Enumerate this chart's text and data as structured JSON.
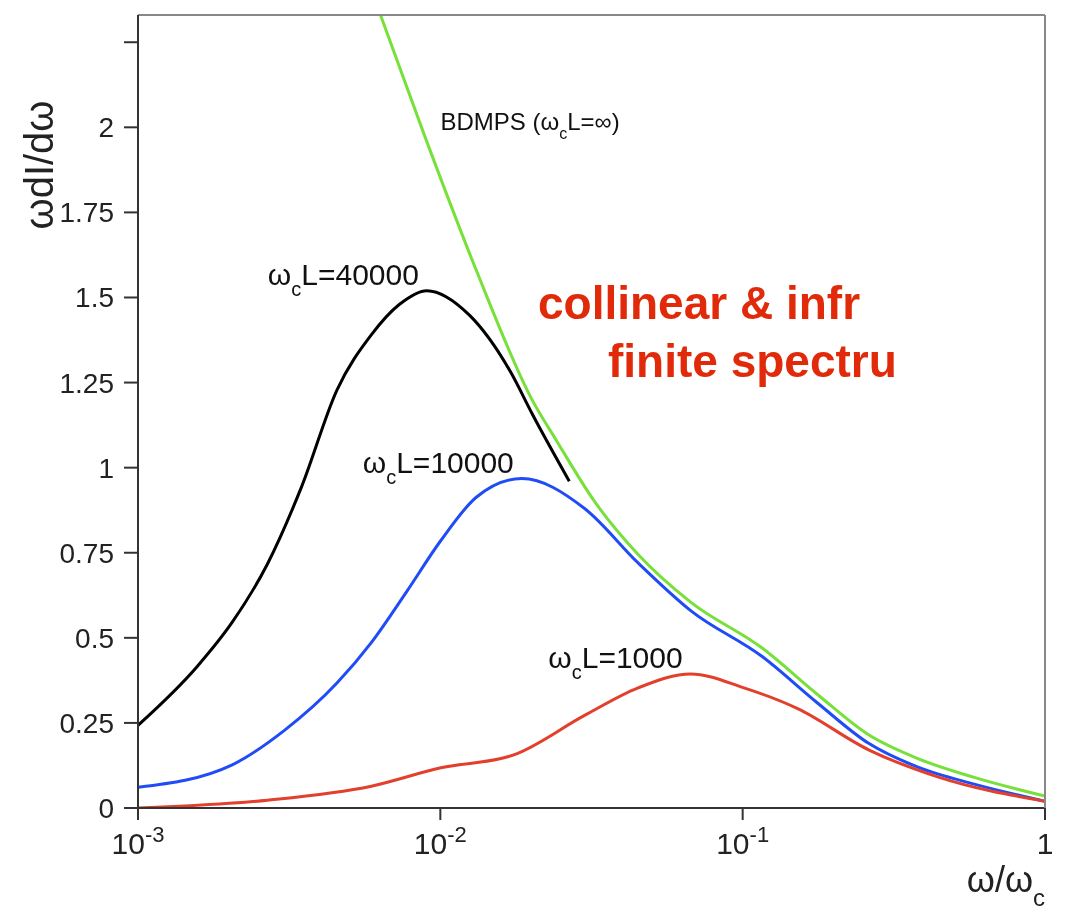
{
  "chart_data": {
    "type": "line",
    "xlabel": "ω/ω$_{c}$",
    "ylabel": "ωdI/dω",
    "log": "x",
    "xlim": [
      0.001,
      1
    ],
    "xticks": [
      {
        "value": 0.001,
        "label": "10$^{-3}$"
      },
      {
        "value": 0.01,
        "label": "10$^{-2}$"
      },
      {
        "value": 0.1,
        "label": "10$^{-1}$"
      },
      1
    ],
    "ylim": [
      0,
      2.33
    ],
    "yticks": [
      0,
      0.25,
      0.5,
      0.75,
      1,
      1.25,
      1.5,
      1.75,
      2,
      {
        "value": 2.25,
        "label": null
      }
    ],
    "series": [
      {
        "name": "BDMPS (ω$_{c}$L=∞)",
        "color": "#77e03a",
        "x": [
          0.00634,
          0.00883,
          0.01315,
          0.0201,
          0.0242,
          0.0324,
          0.0451,
          0.0673,
          0.116,
          0.176,
          0.261,
          0.38,
          0.583,
          1
        ],
        "values": [
          2.33,
          1.98,
          1.58,
          1.2,
          1.08,
          0.9,
          0.745,
          0.605,
          0.47,
          0.335,
          0.215,
          0.145,
          0.09,
          0.035
        ]
      },
      {
        "name": "ω$_{c}$L=40000",
        "color": "#000000",
        "x": [
          0.001,
          0.00157,
          0.00205,
          0.00268,
          0.00348,
          0.00455,
          0.00591,
          0.00733,
          0.00903,
          0.01248,
          0.0171,
          0.0201,
          0.0267
        ],
        "values": [
          0.243,
          0.416,
          0.546,
          0.717,
          0.945,
          1.228,
          1.39,
          1.48,
          1.52,
          1.448,
          1.28,
          1.159,
          0.96
        ]
      },
      {
        "name": "ω$_{c}$L=10000",
        "color": "#1f4cf5",
        "x": [
          0.001,
          0.00205,
          0.00305,
          0.00455,
          0.00591,
          0.00774,
          0.01004,
          0.01315,
          0.0186,
          0.03,
          0.0451,
          0.0673,
          0.116,
          0.176,
          0.261,
          0.38,
          0.583,
          1
        ],
        "values": [
          0.061,
          0.127,
          0.228,
          0.367,
          0.486,
          0.636,
          0.786,
          0.913,
          0.968,
          0.88,
          0.72,
          0.58,
          0.445,
          0.31,
          0.19,
          0.12,
          0.07,
          0.02
        ]
      },
      {
        "name": "ω$_{c}$L=1000",
        "color": "#e2402c",
        "x": [
          0.001,
          0.00268,
          0.00591,
          0.01004,
          0.0175,
          0.03,
          0.0451,
          0.0673,
          0.101,
          0.152,
          0.261,
          0.447,
          1
        ],
        "values": [
          0,
          0.023,
          0.064,
          0.118,
          0.156,
          0.272,
          0.353,
          0.394,
          0.353,
          0.292,
          0.171,
          0.09,
          0.02
        ]
      }
    ],
    "annotations": [
      "collinear & infr",
      "finite spectru"
    ]
  }
}
